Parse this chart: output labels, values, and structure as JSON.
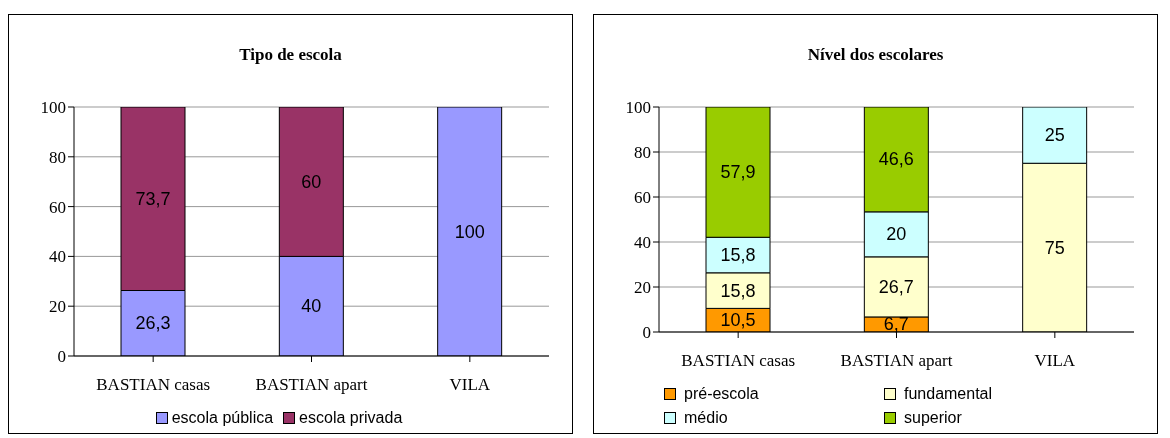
{
  "chart_data": [
    {
      "type": "bar",
      "title": "Tipo de escola",
      "categories": [
        "BASTIAN casas",
        "BASTIAN apart",
        "VILA"
      ],
      "stacked": true,
      "ylim": [
        0,
        100
      ],
      "yticks": [
        0,
        20,
        40,
        60,
        80,
        100
      ],
      "grid": "y",
      "legend": "bottom",
      "series": [
        {
          "name": "escola pública",
          "color": "#9999ff",
          "values": [
            26.3,
            40,
            100
          ],
          "value_labels": [
            "26,3",
            "40",
            "100"
          ]
        },
        {
          "name": "escola privada",
          "color": "#993366",
          "values": [
            73.7,
            60,
            null
          ],
          "value_labels": [
            "73,7",
            "60",
            null
          ]
        }
      ]
    },
    {
      "type": "bar",
      "title": "Nível dos escolares",
      "categories": [
        "BASTIAN casas",
        "BASTIAN apart",
        "VILA"
      ],
      "stacked": true,
      "ylim": [
        0,
        100
      ],
      "yticks": [
        0,
        20,
        40,
        60,
        80,
        100
      ],
      "grid": "y",
      "legend": "bottom",
      "series": [
        {
          "name": "pré-escola",
          "color": "#ff9900",
          "values": [
            10.5,
            6.7,
            null
          ],
          "value_labels": [
            "10,5",
            "6,7",
            null
          ]
        },
        {
          "name": "fundamental",
          "color": "#ffffcc",
          "values": [
            15.8,
            26.7,
            75
          ],
          "value_labels": [
            "15,8",
            "26,7",
            "75"
          ]
        },
        {
          "name": "médio",
          "color": "#ccffff",
          "values": [
            15.8,
            20,
            25
          ],
          "value_labels": [
            "15,8",
            "20",
            "25"
          ]
        },
        {
          "name": "superior",
          "color": "#99cc00",
          "values": [
            57.9,
            46.6,
            null
          ],
          "value_labels": [
            "57,9",
            "46,6",
            null
          ]
        }
      ]
    }
  ]
}
